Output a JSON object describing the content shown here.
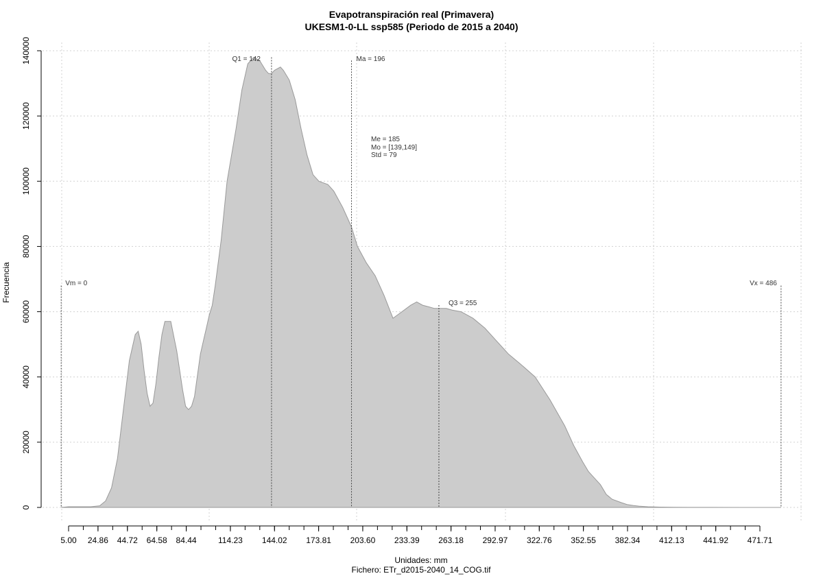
{
  "chart_data": {
    "type": "area",
    "title": "Evapotranspiración real (Primavera)",
    "subtitle": "UKESM1-0-LL ssp585 (Periodo de 2015 a 2040)",
    "xlabel": "Unidades: mm",
    "ylabel": "Frecuencia",
    "file_label": "Fichero: ETr_d2015-2040_14_COG.tif",
    "xlim": [
      -5,
      495
    ],
    "ylim": [
      0,
      140000
    ],
    "x_ticks": [
      "5.00",
      "24.86",
      "44.72",
      "64.58",
      "84.44",
      "114.23",
      "144.02",
      "173.81",
      "203.60",
      "233.39",
      "263.18",
      "292.97",
      "322.76",
      "352.55",
      "382.34",
      "412.13",
      "441.92",
      "471.71"
    ],
    "y_ticks": [
      "0",
      "20000",
      "40000",
      "60000",
      "80000",
      "100000",
      "120000",
      "140000"
    ],
    "grid": true,
    "fill_color": "#cccccc",
    "line_color": "#999999",
    "density": {
      "x": [
        0,
        5,
        20,
        26,
        30,
        34,
        38,
        42,
        46,
        50,
        52,
        54,
        56,
        58,
        60,
        62,
        64,
        66,
        68,
        70,
        74,
        78,
        82,
        84,
        86,
        88,
        90,
        94,
        96,
        98,
        100,
        102,
        104,
        108,
        112,
        118,
        122,
        126,
        130,
        134,
        138,
        140,
        142,
        144,
        148,
        150,
        154,
        158,
        162,
        166,
        170,
        174,
        180,
        184,
        190,
        196,
        200,
        206,
        212,
        218,
        224,
        230,
        236,
        240,
        244,
        248,
        252,
        256,
        260,
        264,
        270,
        278,
        286,
        294,
        302,
        310,
        320,
        330,
        340,
        346,
        352,
        356,
        360,
        364,
        368,
        372,
        378,
        382,
        386,
        390,
        396,
        404,
        414,
        424,
        440,
        460,
        480,
        486
      ],
      "y": [
        0,
        200,
        200,
        500,
        2000,
        6000,
        15000,
        30000,
        45000,
        53000,
        54000,
        50000,
        42000,
        35000,
        31000,
        32000,
        38000,
        46000,
        53000,
        57000,
        57000,
        48000,
        36000,
        31000,
        30000,
        31000,
        34000,
        47000,
        51000,
        55000,
        59000,
        62000,
        68000,
        82000,
        100000,
        116000,
        128000,
        136000,
        138000,
        137000,
        134000,
        133000,
        133000,
        134000,
        135000,
        134000,
        131000,
        125000,
        116000,
        108000,
        102000,
        100000,
        99000,
        97000,
        92000,
        86000,
        80000,
        75000,
        71000,
        65000,
        58000,
        60000,
        62000,
        63000,
        62000,
        61500,
        61000,
        61000,
        61000,
        60500,
        60000,
        58000,
        55000,
        51000,
        47000,
        44000,
        40000,
        33000,
        25000,
        19000,
        14000,
        11000,
        9000,
        7000,
        4000,
        2500,
        1500,
        900,
        600,
        400,
        200,
        100,
        50,
        30,
        20,
        10,
        5,
        0
      ]
    },
    "vlines": [
      {
        "value": 0,
        "label": "Vm = 0",
        "top": 68000
      },
      {
        "value": 142,
        "label": "Q1 = 142",
        "top": 138000
      },
      {
        "value": 196,
        "label": "Ma = 196",
        "top": 137000
      },
      {
        "value": 255,
        "label": "Q3 = 255",
        "top": 62000
      },
      {
        "value": 486,
        "label": "Vx = 486",
        "top": 68000
      }
    ],
    "stats": [
      "Me = 185",
      "Mo = [139,149]",
      "Std = 79"
    ]
  }
}
